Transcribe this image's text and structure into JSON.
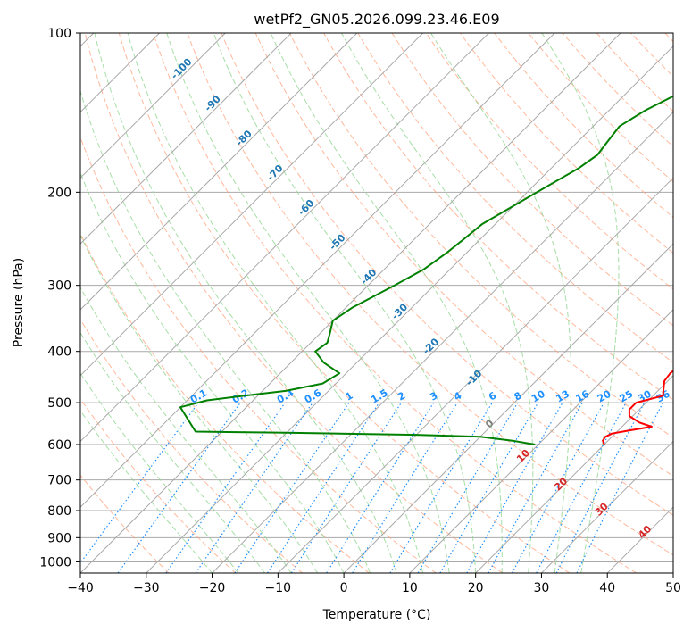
{
  "chart_data": {
    "type": "line",
    "title": "wetPf2_GN05.2026.099.23.46.E09",
    "xlabel": "Temperature (°C)",
    "ylabel": "Pressure (hPa)",
    "xlim": [
      -40,
      50
    ],
    "ylim": [
      1050,
      100
    ],
    "x_ticks": [
      -40,
      -30,
      -20,
      -10,
      0,
      10,
      20,
      30,
      40,
      50
    ],
    "y_ticks": [
      100,
      200,
      300,
      400,
      500,
      600,
      700,
      800,
      900,
      1000
    ],
    "grid": true,
    "series": [
      {
        "name": "temperature",
        "color": "#ff0000",
        "points": [
          [
            600,
            20.0
          ],
          [
            590,
            19.2
          ],
          [
            580,
            19.0
          ],
          [
            572,
            19.5
          ],
          [
            565,
            21.5
          ],
          [
            555,
            24.5
          ],
          [
            545,
            22.0
          ],
          [
            530,
            19.5
          ],
          [
            515,
            18.5
          ],
          [
            500,
            18.5
          ],
          [
            485,
            21.5
          ],
          [
            470,
            20.5
          ],
          [
            455,
            19.5
          ],
          [
            440,
            19.2
          ],
          [
            425,
            19.5
          ],
          [
            400,
            18.5
          ],
          [
            370,
            16.0
          ],
          [
            340,
            13.5
          ],
          [
            310,
            10.5
          ],
          [
            280,
            7.5
          ],
          [
            255,
            5.5
          ],
          [
            235,
            4.5
          ],
          [
            215,
            3.8
          ],
          [
            200,
            3.5
          ],
          [
            185,
            4.3
          ],
          [
            165,
            5.5
          ],
          [
            150,
            5.8
          ],
          [
            140,
            6.2
          ],
          [
            130,
            6.5
          ],
          [
            121,
            5.2
          ],
          [
            115,
            4.3
          ],
          [
            110,
            4.6
          ],
          [
            106,
            6.0
          ],
          [
            103,
            8.0
          ],
          [
            100,
            12.5
          ]
        ]
      },
      {
        "name": "dewpoint",
        "color": "#008000",
        "points": [
          [
            600,
            9.5
          ],
          [
            590,
            5.5
          ],
          [
            580,
            0
          ],
          [
            575,
            -10
          ],
          [
            570,
            -30
          ],
          [
            567,
            -44
          ],
          [
            510,
            -50
          ],
          [
            495,
            -47
          ],
          [
            485,
            -42
          ],
          [
            475,
            -36.5
          ],
          [
            460,
            -32
          ],
          [
            440,
            -31
          ],
          [
            420,
            -35
          ],
          [
            400,
            -38
          ],
          [
            385,
            -37.5
          ],
          [
            370,
            -38.5
          ],
          [
            350,
            -40
          ],
          [
            330,
            -39
          ],
          [
            300,
            -36
          ],
          [
            280,
            -34
          ],
          [
            260,
            -33
          ],
          [
            245,
            -32.5
          ],
          [
            230,
            -32
          ],
          [
            200,
            -28.5
          ],
          [
            180,
            -25.8
          ],
          [
            170,
            -25
          ],
          [
            160,
            -25.5
          ],
          [
            150,
            -26
          ],
          [
            140,
            -24.5
          ],
          [
            130,
            -22
          ],
          [
            122,
            -17
          ],
          [
            119,
            -8
          ],
          [
            116,
            -3
          ],
          [
            110,
            1
          ],
          [
            105,
            0.5
          ],
          [
            100,
            -3
          ]
        ]
      }
    ],
    "isotherm_labels": [
      "-100",
      "-90",
      "-80",
      "-70",
      "-60",
      "-50",
      "-40",
      "-30",
      "-20",
      "-10",
      "0",
      "10",
      "20",
      "30",
      "40"
    ],
    "mixing_ratio_labels": [
      "0.1",
      "0.2",
      "0.4",
      "0.6",
      "1",
      "1.5",
      "2",
      "3",
      "4",
      "6",
      "8",
      "10",
      "13",
      "16",
      "20",
      "25",
      "30",
      "36"
    ],
    "mixing_ratio_values": [
      0.1,
      0.2,
      0.4,
      0.6,
      1,
      1.5,
      2,
      3,
      4,
      6,
      8,
      10,
      13,
      16,
      20,
      25,
      30,
      36
    ],
    "colors": {
      "isotherm": "#a9a9a9",
      "isobar": "#a9a9a9",
      "dry_adiabat": "#ffa07a",
      "moist_adiabat": "#98d898",
      "mixing_ratio": "#1e90ff",
      "isotherm_label_cold": "#1f77b4",
      "isotherm_label_zero": "#808080",
      "isotherm_label_warm": "#d62728",
      "mixing_ratio_label": "#1e90ff"
    }
  }
}
